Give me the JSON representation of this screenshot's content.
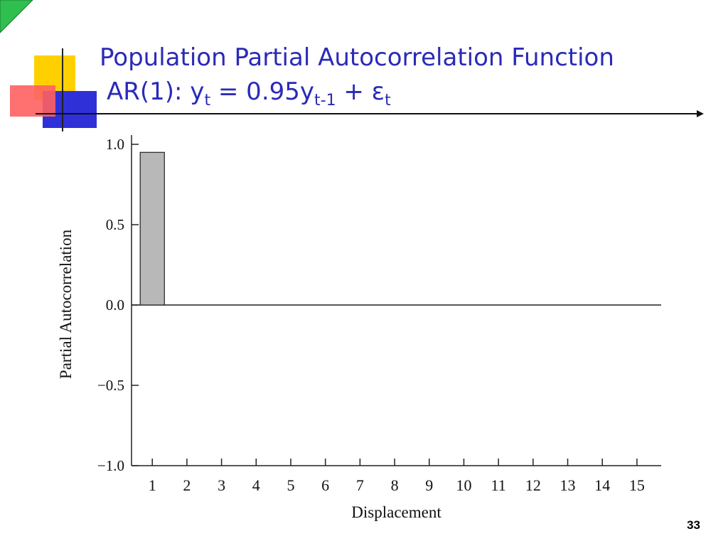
{
  "title": "Population Partial Autocorrelation Function",
  "subtitle_parts": [
    {
      "text": "AR(1): y",
      "sub": false
    },
    {
      "text": "t",
      "sub": true
    },
    {
      "text": " = 0.95y",
      "sub": false
    },
    {
      "text": "t-1",
      "sub": true
    },
    {
      "text": " + ε",
      "sub": false
    },
    {
      "text": "t",
      "sub": true
    }
  ],
  "page_number": "33",
  "chart_data": {
    "type": "bar",
    "x": [
      1,
      2,
      3,
      4,
      5,
      6,
      7,
      8,
      9,
      10,
      11,
      12,
      13,
      14,
      15
    ],
    "values": [
      0.95,
      0,
      0,
      0,
      0,
      0,
      0,
      0,
      0,
      0,
      0,
      0,
      0,
      0,
      0
    ],
    "color": "#b8b8b8",
    "xlabel": "Displacement",
    "ylabel": "Partial Autocorrelation",
    "xlim": [
      0.4,
      15.7
    ],
    "xticks": [
      1,
      2,
      3,
      4,
      5,
      6,
      7,
      8,
      9,
      10,
      11,
      12,
      13,
      14,
      15
    ],
    "ylim": [
      -1,
      1
    ],
    "yticks": [
      {
        "value": -1,
        "label": "−1.0"
      },
      {
        "value": -0.5,
        "label": "−0.5"
      },
      {
        "value": 0,
        "label": "0.0"
      },
      {
        "value": 0.5,
        "label": "0.5"
      },
      {
        "value": 1,
        "label": "1.0"
      }
    ]
  }
}
